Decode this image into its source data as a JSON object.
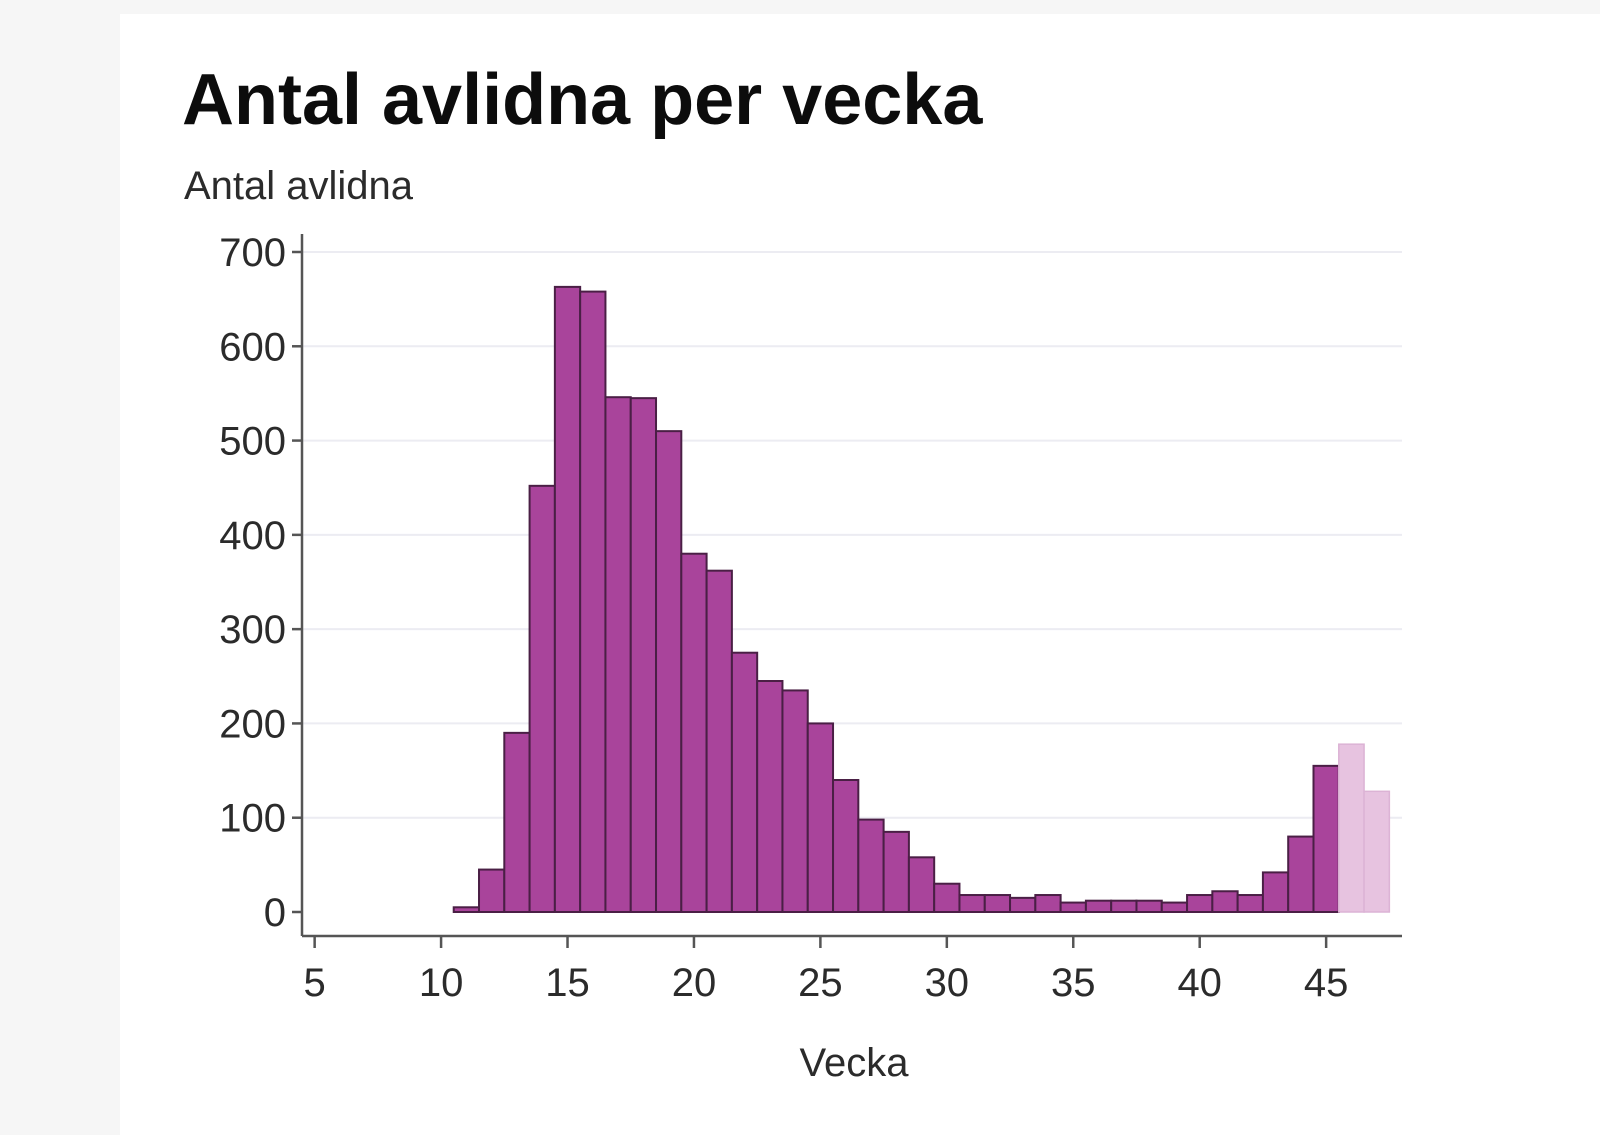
{
  "chart_data": {
    "type": "bar",
    "title": "Antal avlidna per vecka",
    "ylabel": "Antal avlidna",
    "xlabel": "Vecka",
    "xlim": [
      4.5,
      48
    ],
    "ylim": [
      0,
      700
    ],
    "xticks": [
      5,
      10,
      15,
      20,
      25,
      30,
      35,
      40,
      45
    ],
    "yticks": [
      0,
      100,
      200,
      300,
      400,
      500,
      600,
      700
    ],
    "grid": true,
    "legend": "none",
    "colors": {
      "bar": "#a9449b",
      "bar_edge": "#4a1f45",
      "preliminary": "#e7c3e0",
      "preliminary_edge": "#dcb3d5"
    },
    "series": [
      {
        "x": [
          11,
          12,
          13,
          14,
          15,
          16,
          17,
          18,
          19,
          20,
          21,
          22,
          23,
          24,
          25,
          26,
          27,
          28,
          29,
          30,
          31,
          32,
          33,
          34,
          35,
          36,
          37,
          38,
          39,
          40,
          41,
          42,
          43,
          44,
          45
        ],
        "values": [
          5,
          45,
          190,
          452,
          663,
          658,
          546,
          545,
          510,
          380,
          362,
          275,
          245,
          235,
          200,
          140,
          98,
          85,
          58,
          30,
          18,
          18,
          15,
          18,
          10,
          12,
          12,
          12,
          10,
          18,
          22,
          18,
          42,
          80,
          155
        ]
      },
      {
        "x": [
          46,
          47
        ],
        "values": [
          178,
          128
        ],
        "preliminary": true
      }
    ]
  }
}
